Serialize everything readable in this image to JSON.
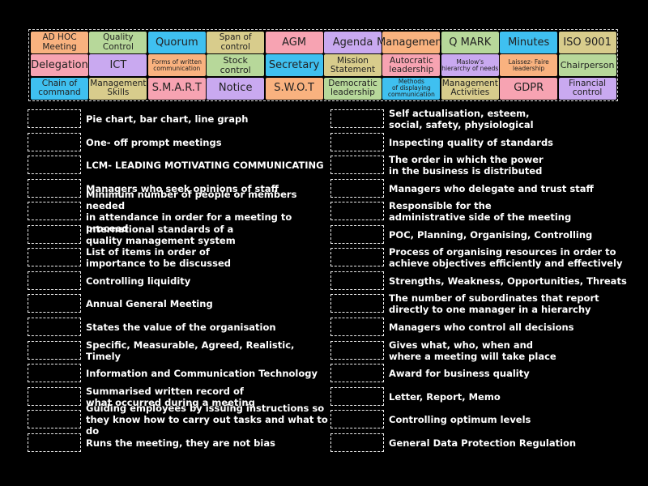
{
  "tiles": [
    {
      "lines": [
        "AD HOC",
        "Meeting"
      ],
      "color": "#f9b27f"
    },
    {
      "lines": [
        "Quality",
        "Control"
      ],
      "color": "#b7d89a"
    },
    {
      "lines": [
        "Quorum"
      ],
      "color": "#3fc0f0"
    },
    {
      "lines": [
        "Span of",
        "control"
      ],
      "color": "#d8cc8c"
    },
    {
      "lines": [
        "AGM"
      ],
      "color": "#f7a3b2"
    },
    {
      "lines": [
        "Agenda"
      ],
      "color": "#c9a9f0"
    },
    {
      "lines": [
        "Management"
      ],
      "color": "#f9b27f"
    },
    {
      "lines": [
        "Q MARK"
      ],
      "color": "#b7d89a"
    },
    {
      "lines": [
        "Minutes"
      ],
      "color": "#3fc0f0"
    },
    {
      "lines": [
        "ISO 9001"
      ],
      "color": "#d8cc8c"
    },
    {
      "lines": [
        "Delegation"
      ],
      "color": "#f7a3b2"
    },
    {
      "lines": [
        "ICT"
      ],
      "color": "#c9a9f0"
    },
    {
      "lines": [
        "Forms of written",
        "communication"
      ],
      "color": "#f9b27f"
    },
    {
      "lines": [
        "Stock control"
      ],
      "color": "#b7d89a"
    },
    {
      "lines": [
        "Secretary"
      ],
      "color": "#3fc0f0"
    },
    {
      "lines": [
        "Mission",
        "Statement"
      ],
      "color": "#d8cc8c"
    },
    {
      "lines": [
        "Autocratic",
        "leadership"
      ],
      "color": "#f7a3b2"
    },
    {
      "lines": [
        "Maslow's",
        "hierarchy of needs"
      ],
      "color": "#c9a9f0"
    },
    {
      "lines": [
        "Laissez- Faire",
        "leadership"
      ],
      "color": "#f9b27f"
    },
    {
      "lines": [
        "Chairperson"
      ],
      "color": "#b7d89a"
    },
    {
      "lines": [
        "Chain of",
        "command"
      ],
      "color": "#3fc0f0"
    },
    {
      "lines": [
        "Management",
        "Skills"
      ],
      "color": "#d8cc8c"
    },
    {
      "lines": [
        "S.M.A.R.T"
      ],
      "color": "#f7a3b2"
    },
    {
      "lines": [
        "Notice"
      ],
      "color": "#c9a9f0"
    },
    {
      "lines": [
        "S.W.O.T"
      ],
      "color": "#f9b27f"
    },
    {
      "lines": [
        "Democratic",
        "leadership"
      ],
      "color": "#b7d89a"
    },
    {
      "lines": [
        "Methods",
        "of displaying",
        "communication"
      ],
      "color": "#3fc0f0"
    },
    {
      "lines": [
        "Management",
        "Activities"
      ],
      "color": "#d8cc8c"
    },
    {
      "lines": [
        "GDPR"
      ],
      "color": "#f7a3b2"
    },
    {
      "lines": [
        "Financial",
        "control"
      ],
      "color": "#c9a9f0"
    }
  ],
  "left_clues": [
    [
      "Pie chart, bar chart, line graph"
    ],
    [
      "One- off prompt meetings"
    ],
    [
      "LCM- LEADING MOTIVATING COMMUNICATING"
    ],
    [
      "Managers who seek opinions of staff"
    ],
    [
      "Minimum number of people or members needed",
      "in attendance in order for a meeting to proceed"
    ],
    [
      "International standards of a",
      "quality management system"
    ],
    [
      "List of items in order of",
      "importance to be discussed"
    ],
    [
      "Controlling liquidity"
    ],
    [
      "Annual General Meeting"
    ],
    [
      "States the value of the organisation"
    ],
    [
      "Specific, Measurable, Agreed, Realistic, Timely"
    ],
    [
      "Information and Communication Technology"
    ],
    [
      "Summarised written record of",
      "what occurred during a meeting"
    ],
    [
      "Guiding employees by issuing instructions so",
      "they know how to carry out tasks and what to do"
    ],
    [
      "Runs the meeting, they are not bias"
    ]
  ],
  "right_clues": [
    [
      "Self actualisation, esteem,",
      "social, safety, physiological"
    ],
    [
      "Inspecting quality of standards"
    ],
    [
      "The order in which the power",
      "in the business is distributed"
    ],
    [
      "Managers who delegate and trust staff"
    ],
    [
      "Responsible for the",
      "administrative side of the meeting"
    ],
    [
      "POC, Planning, Organising, Controlling"
    ],
    [
      "Process of organising resources in order to",
      "achieve objectives efficiently and effectively"
    ],
    [
      "Strengths, Weakness, Opportunities, Threats"
    ],
    [
      "The number of subordinates that report",
      "directly to one manager in a hierarchy"
    ],
    [
      "Managers who control all decisions"
    ],
    [
      "Gives what, who, when and",
      "where a meeting will take place"
    ],
    [
      "Award for business quality"
    ],
    [
      "Letter, Report, Memo"
    ],
    [
      "Controlling optimum levels"
    ],
    [
      "General Data Protection Regulation"
    ]
  ]
}
